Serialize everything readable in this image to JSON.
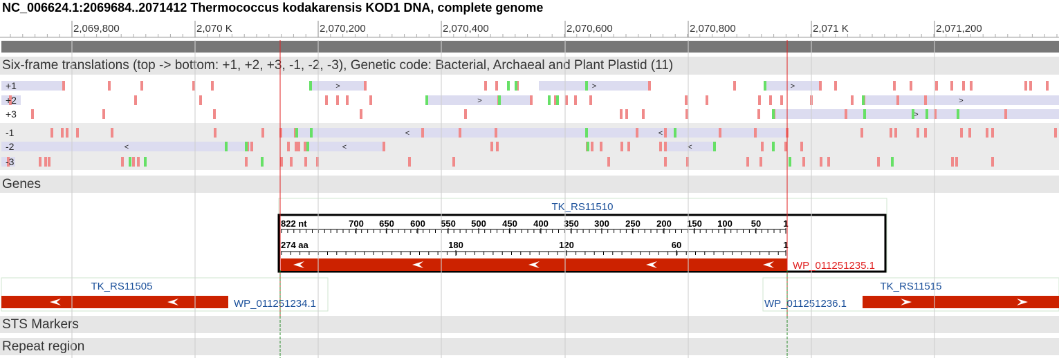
{
  "title": "NC_006624.1:2069684..2071412 Thermococcus kodakarensis KOD1 DNA, complete genome",
  "ruler": {
    "ticks": [
      "2,069,800",
      "2,070 K",
      "2,070,200",
      "2,070,400",
      "2,070,600",
      "2,070,800",
      "2,071 K",
      "2,071,200"
    ]
  },
  "tracks": {
    "six_frame": "Six-frame translations (top -> bottom: +1, +2, +3, -1, -2, -3), Genetic code: Bacterial, Archaeal and Plant Plastid (11)",
    "frame_labels": [
      "+1",
      "+2",
      "+3",
      "-1",
      "-2",
      "-3"
    ],
    "genes": "Genes",
    "sts": "STS Markers",
    "repeat": "Repeat region"
  },
  "genes": {
    "left_name": "TK_RS11505",
    "left_protein": "WP_011251234.1",
    "selected_name": "TK_RS11510",
    "selected_protein": "WP_011251235.1",
    "right_name": "TK_RS11515",
    "right_protein": "WP_011251236.1"
  },
  "selection_ruler": {
    "nt_label": "822 nt",
    "nt_ticks": [
      "700",
      "650",
      "600",
      "550",
      "500",
      "450",
      "400",
      "350",
      "300",
      "250",
      "200",
      "150",
      "100",
      "50",
      "1"
    ],
    "aa_label": "274 aa",
    "aa_ticks": [
      "180",
      "120",
      "60",
      "1"
    ]
  },
  "colors": {
    "gene": "#cc2200",
    "orf": "#dcdcf0",
    "stop": "#f08a8a",
    "start": "#66e066",
    "selection": "#e02020",
    "link": "#1a4f9a"
  }
}
